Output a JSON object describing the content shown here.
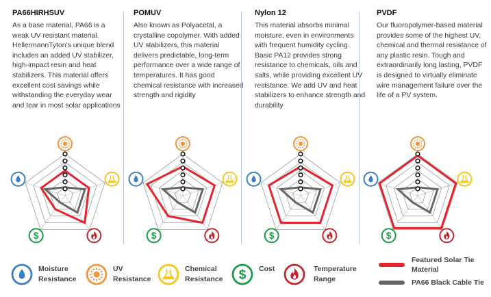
{
  "materials": [
    {
      "title": "PA66HIRHSUV",
      "description": "As a base material, PA66 is a weak UV resistant material. HellermannTyton’s unique blend includes an added UV stabilizer, high-impact resin and heat stabilizers. This material offers excellent cost savings while withstanding the everyday wear and tear in most solar applications"
    },
    {
      "title": "POMUV",
      "description": "Also known as Polyacetal, a crystalline copolymer. With added UV stabilizers, this material delivers predictable, long-term performance over a wide range of temperatures. It has good chemical resistance with increased strength and rigidity"
    },
    {
      "title": "Nylon 12",
      "description": "This material absorbs minimal moisture, even in environments with frequent humidity cycling. Basic PA12 provides strong resistance to chemicals, oils and salts, while providing excellent UV resistance. We add UV and heat stabilizers to enhance strength and durability"
    },
    {
      "title": "PVDF",
      "description": "Our fluoropolymer-based material provides some of the highest UV, chemical and thermal resistance of any plastic resin. Tough and extraordinarily long lasting, PVDF is designed to virtually eliminate wire management failure over the life of a PV system."
    }
  ],
  "legend": {
    "axes": [
      {
        "line1": "Moisture",
        "line2": "Resistance",
        "icon": "water-drop-icon",
        "color": "#3a7fc1"
      },
      {
        "line1": "UV",
        "line2": "Resistance",
        "icon": "sun-icon",
        "color": "#f0963c"
      },
      {
        "line1": "Chemical",
        "line2": "Resistance",
        "icon": "flask-icon",
        "color": "#f5c518"
      },
      {
        "line1": "Cost",
        "line2": "",
        "icon": "dollar-icon",
        "color": "#1a9a46"
      },
      {
        "line1": "Temperature",
        "line2": "Range",
        "icon": "flame-icon",
        "color": "#c0272d"
      }
    ],
    "series": [
      {
        "name": "Featured Solar Tie Material",
        "color": "#e3242b"
      },
      {
        "name": "PA66 Black Cable Tie",
        "color": "#666666"
      }
    ]
  },
  "chart_data": [
    {
      "type": "radar",
      "material": "PA66HIRHSUV",
      "axes": [
        "UV Resistance",
        "Chemical Resistance",
        "Temperature Range",
        "Cost",
        "Moisture Resistance"
      ],
      "range": [
        0,
        5
      ],
      "levels": 5,
      "series": [
        {
          "name": "Featured Solar Tie Material",
          "values": [
            3,
            3,
            4,
            2,
            3
          ]
        },
        {
          "name": "PA66 Black Cable Tie",
          "values": [
            1,
            2.5,
            2.5,
            1,
            2.5
          ]
        }
      ]
    },
    {
      "type": "radar",
      "material": "POMUV",
      "axes": [
        "UV Resistance",
        "Chemical Resistance",
        "Temperature Range",
        "Cost",
        "Moisture Resistance"
      ],
      "range": [
        0,
        5
      ],
      "levels": 5,
      "series": [
        {
          "name": "Featured Solar Tie Material",
          "values": [
            3.5,
            4,
            4,
            3,
            4.5
          ]
        },
        {
          "name": "PA66 Black Cable Tie",
          "values": [
            1,
            2.5,
            2.5,
            1,
            2.5
          ]
        }
      ]
    },
    {
      "type": "radar",
      "material": "Nylon 12",
      "axes": [
        "UV Resistance",
        "Chemical Resistance",
        "Temperature Range",
        "Cost",
        "Moisture Resistance"
      ],
      "range": [
        0,
        5
      ],
      "levels": 5,
      "series": [
        {
          "name": "Featured Solar Tie Material",
          "values": [
            3.5,
            4,
            4,
            4,
            4
          ]
        },
        {
          "name": "PA66 Black Cable Tie",
          "values": [
            1,
            2.5,
            2.5,
            1,
            2.5
          ]
        }
      ]
    },
    {
      "type": "radar",
      "material": "PVDF",
      "axes": [
        "UV Resistance",
        "Chemical Resistance",
        "Temperature Range",
        "Cost",
        "Moisture Resistance"
      ],
      "range": [
        0,
        5
      ],
      "levels": 5,
      "series": [
        {
          "name": "Featured Solar Tie Material",
          "values": [
            4.8,
            4.8,
            4.8,
            4.8,
            4.8
          ]
        },
        {
          "name": "PA66 Black Cable Tie",
          "values": [
            1,
            2.5,
            2.5,
            1,
            2.5
          ]
        }
      ]
    }
  ]
}
